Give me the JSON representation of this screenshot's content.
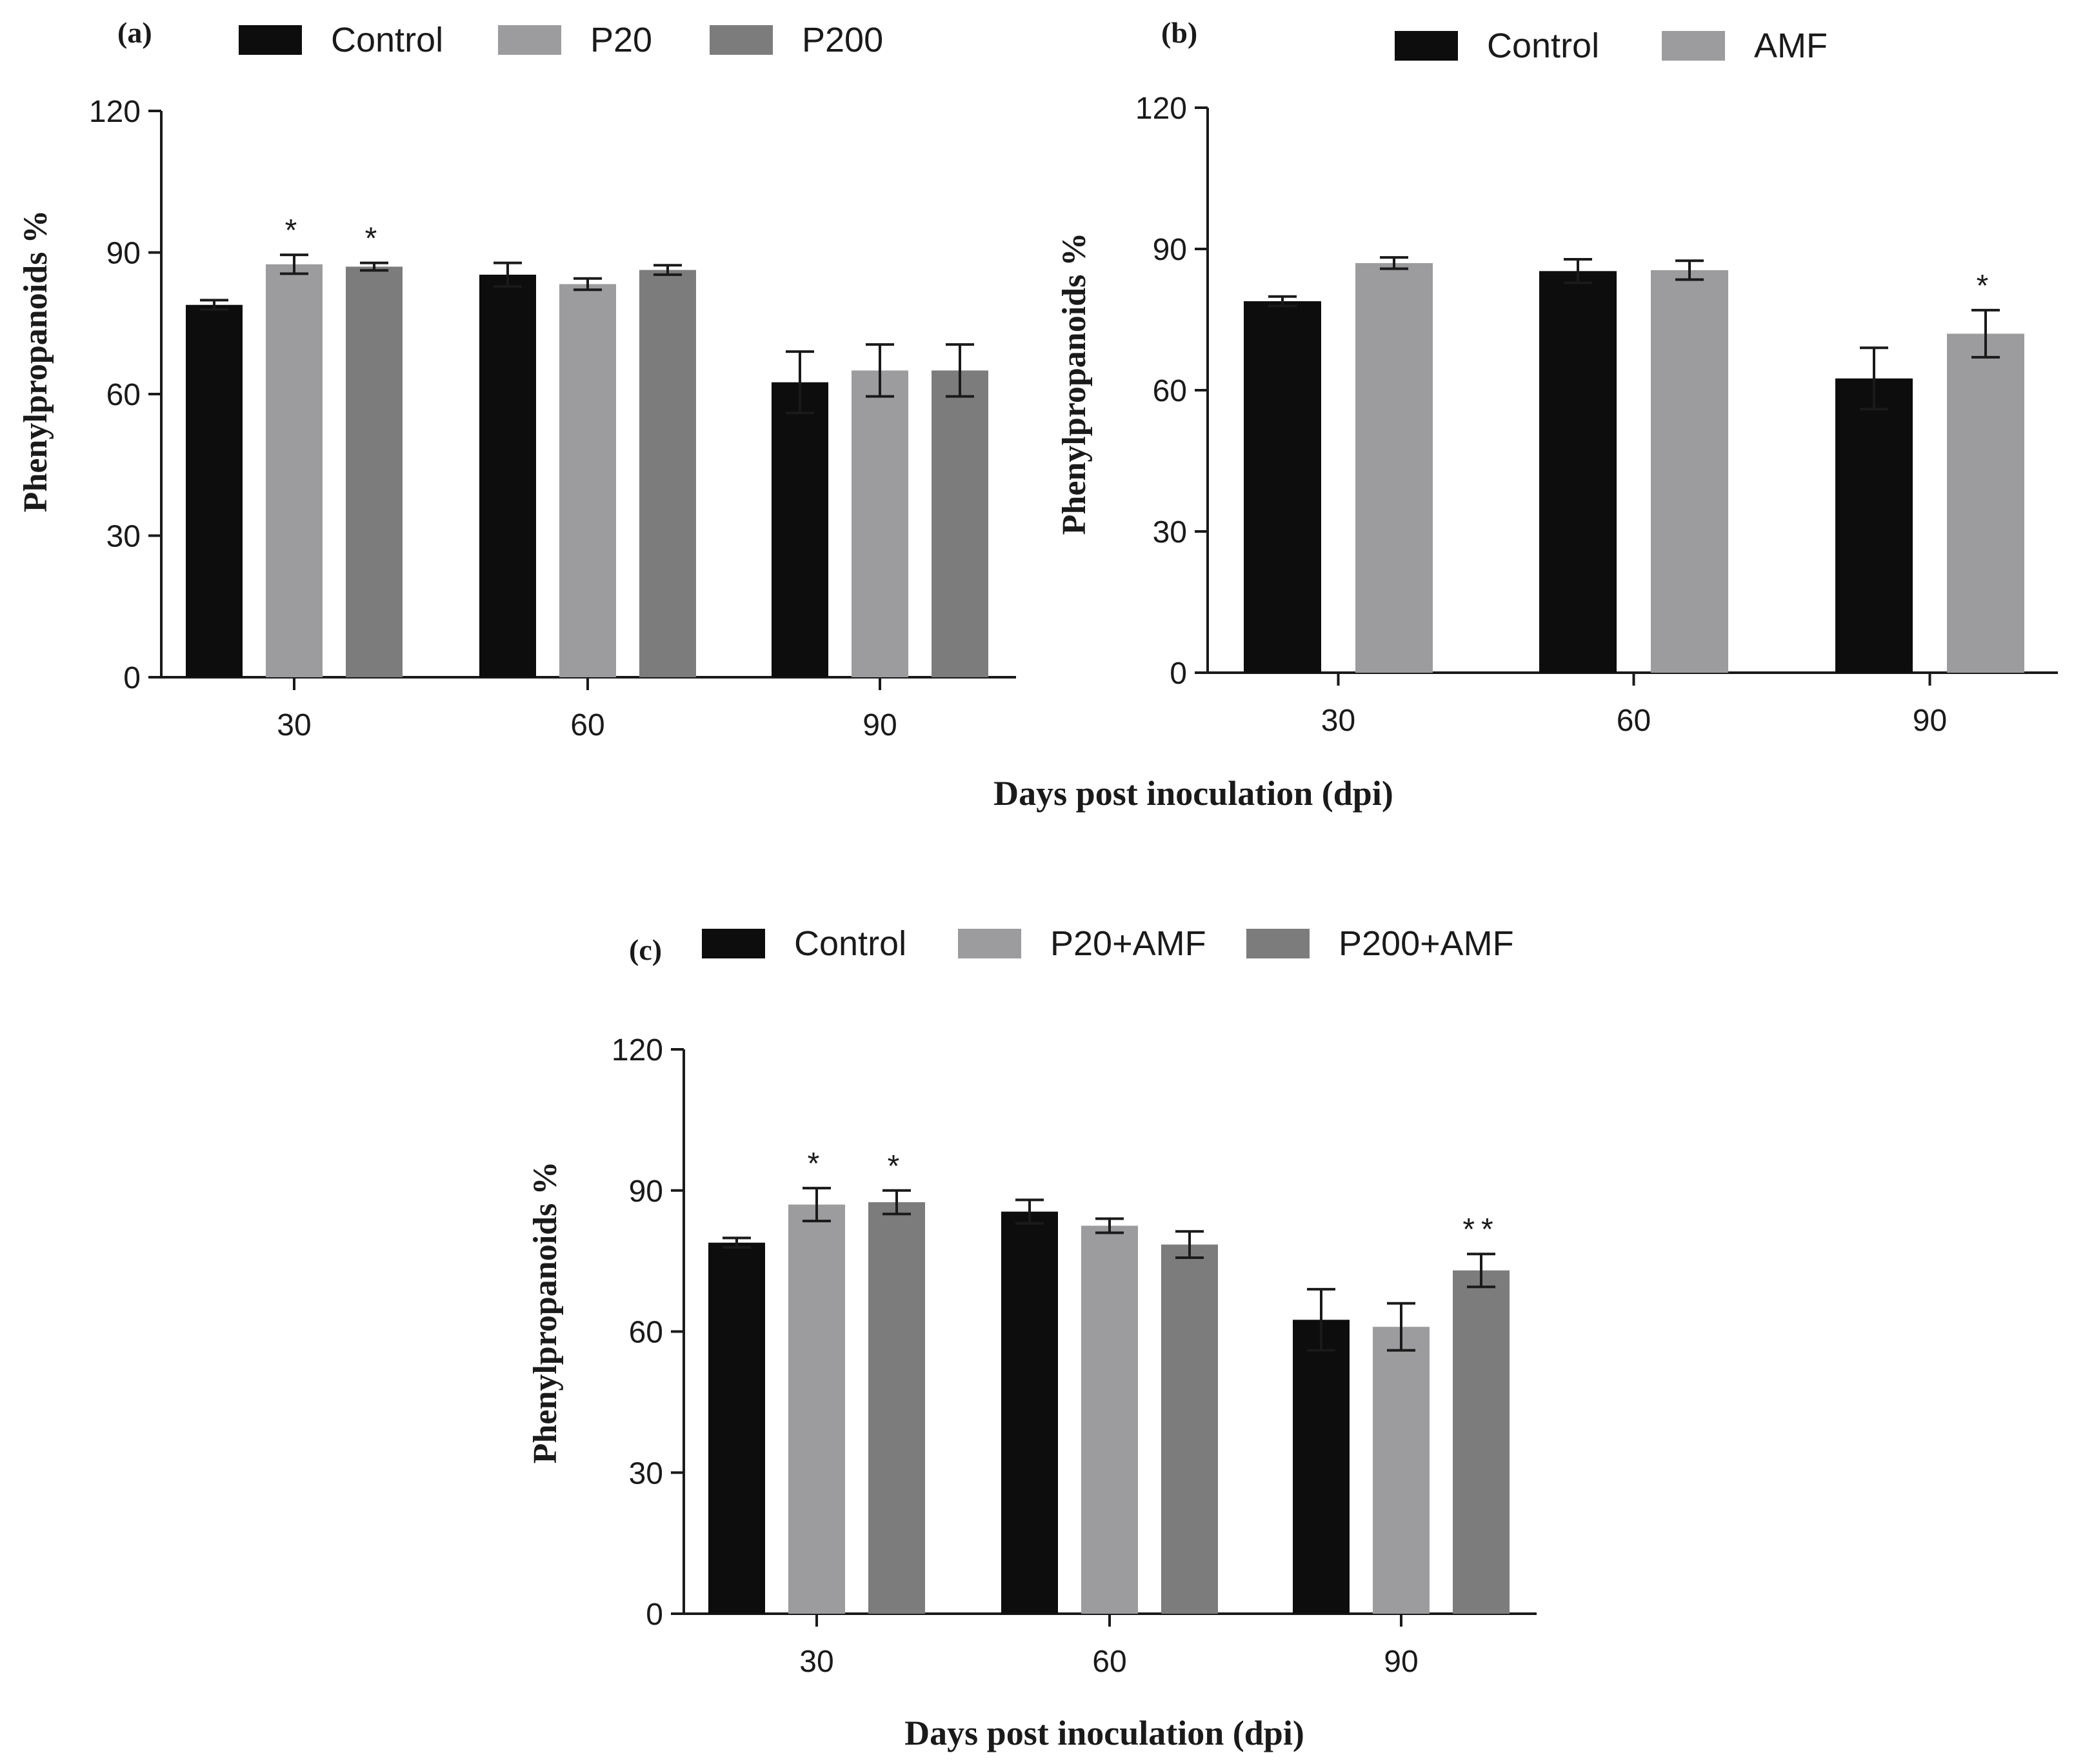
{
  "chart_data": [
    {
      "panel_label": "(a)",
      "type": "bar",
      "categories": [
        "30",
        "60",
        "90"
      ],
      "series": [
        {
          "name": "Control",
          "color": "#0d0d0d",
          "values": [
            78.9,
            85.3,
            62.5
          ],
          "errors": [
            1.0,
            2.5,
            6.5
          ],
          "marks": [
            "",
            "",
            ""
          ]
        },
        {
          "name": "P20",
          "color": "#9c9c9e",
          "values": [
            87.5,
            83.3,
            65.0
          ],
          "errors": [
            2.0,
            1.2,
            5.5
          ],
          "marks": [
            "*",
            "",
            ""
          ]
        },
        {
          "name": "P200",
          "color": "#7c7c7c",
          "values": [
            87.0,
            86.3,
            65.0
          ],
          "errors": [
            0.8,
            1.0,
            5.5
          ],
          "marks": [
            "*",
            "",
            ""
          ]
        }
      ],
      "ylabel": "Phenylpropanoids %",
      "xlabel": "",
      "ylim": [
        0,
        120
      ],
      "yticks": [
        "0",
        "30",
        "60",
        "90",
        "120"
      ],
      "legend_position": "top"
    },
    {
      "panel_label": "(b)",
      "type": "bar",
      "categories": [
        "30",
        "60",
        "90"
      ],
      "series": [
        {
          "name": "Control",
          "color": "#0d0d0d",
          "values": [
            78.9,
            85.3,
            62.5
          ],
          "errors": [
            1.0,
            2.5,
            6.5
          ],
          "marks": [
            "",
            "",
            ""
          ]
        },
        {
          "name": "AMF",
          "color": "#9c9c9e",
          "values": [
            87.0,
            85.5,
            72.0
          ],
          "errors": [
            1.2,
            2.0,
            5.0
          ],
          "marks": [
            "",
            "",
            "*"
          ]
        }
      ],
      "ylabel": "Phenylpropanoids %",
      "xlabel": "",
      "ylim": [
        0,
        120
      ],
      "yticks": [
        "0",
        "30",
        "60",
        "90",
        "120"
      ],
      "legend_position": "top"
    },
    {
      "panel_label": "(c)",
      "type": "bar",
      "categories": [
        "30",
        "60",
        "90"
      ],
      "series": [
        {
          "name": "Control",
          "color": "#0d0d0d",
          "values": [
            78.9,
            85.5,
            62.5
          ],
          "errors": [
            1.0,
            2.5,
            6.5
          ],
          "marks": [
            "",
            "",
            ""
          ]
        },
        {
          "name": "P20+AMF",
          "color": "#9c9c9e",
          "values": [
            87.0,
            82.5,
            61.0
          ],
          "errors": [
            3.5,
            1.5,
            5.0
          ],
          "marks": [
            "*",
            "",
            ""
          ]
        },
        {
          "name": "P200+AMF",
          "color": "#7c7c7c",
          "values": [
            87.5,
            78.5,
            73.0
          ],
          "errors": [
            2.5,
            2.8,
            3.5
          ],
          "marks": [
            "*",
            "",
            "**"
          ]
        }
      ],
      "ylabel": "Phenylpropanoids %",
      "xlabel": "Days post inoculation (dpi)",
      "ylim": [
        0,
        120
      ],
      "yticks": [
        "0",
        "30",
        "60",
        "90",
        "120"
      ],
      "legend_position": "top"
    }
  ],
  "shared_xlabel_top": "Days post inoculation (dpi)"
}
